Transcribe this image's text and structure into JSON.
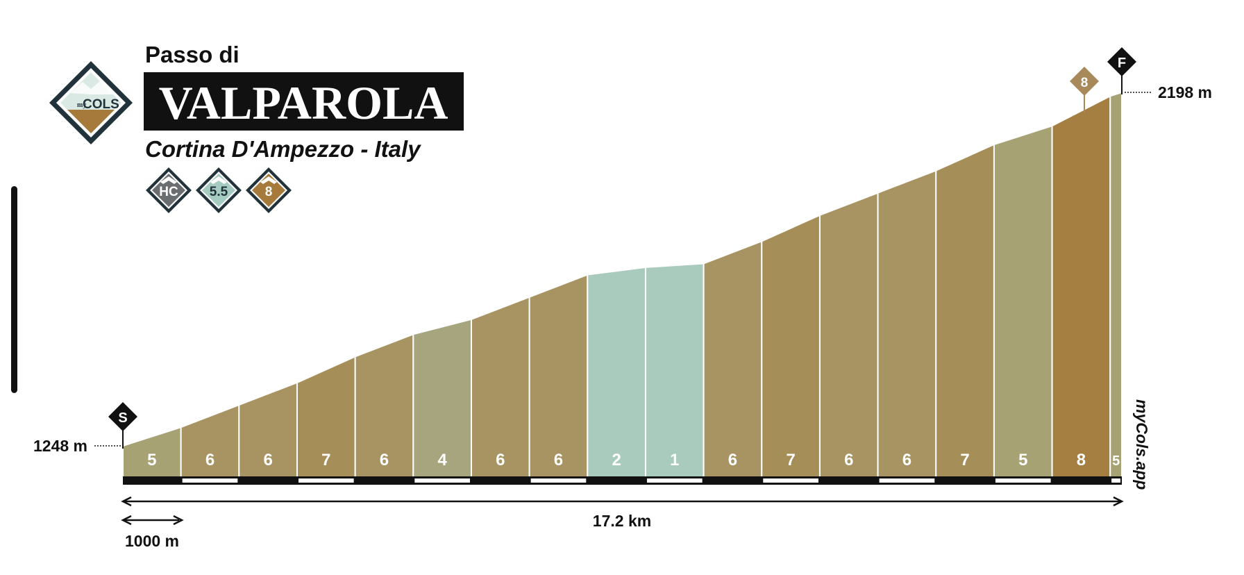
{
  "header": {
    "prefix": "Passo di",
    "name": "VALPAROLA",
    "location": "Cortina D'Ampezzo - Italy",
    "logo_text_small": "my",
    "logo_text_big": "COLS"
  },
  "badges": [
    {
      "label": "HC",
      "color": "#6b6e70"
    },
    {
      "label": "5.5",
      "color": "#a6cbc0"
    },
    {
      "label": "8",
      "color": "#a67a3a"
    }
  ],
  "markers": {
    "start": "S",
    "finish": "F"
  },
  "summit_badge": {
    "label": "8",
    "color": "#a88a5a"
  },
  "watermark": "myCols.app",
  "colors": {
    "2": "#a9cbbd",
    "1": "#a9cbbd",
    "4": "#a6a57e",
    "5": "#a6a274",
    "6": "#a89462",
    "7": "#a68e58",
    "8": "#a57f41"
  },
  "chart_data": {
    "type": "area",
    "title": "VALPAROLA",
    "start_elevation": 1248,
    "end_elevation": 2198,
    "start_label": "1248 m",
    "end_label": "2198 m",
    "distance_label": "17.2 km",
    "distance_km": 17.2,
    "scale_label": "1000 m",
    "scale_km": 1,
    "segments": [
      {
        "km_start": 0,
        "km_end": 1,
        "gradient": 5
      },
      {
        "km_start": 1,
        "km_end": 2,
        "gradient": 6
      },
      {
        "km_start": 2,
        "km_end": 3,
        "gradient": 6
      },
      {
        "km_start": 3,
        "km_end": 4,
        "gradient": 7
      },
      {
        "km_start": 4,
        "km_end": 5,
        "gradient": 6
      },
      {
        "km_start": 5,
        "km_end": 6,
        "gradient": 4
      },
      {
        "km_start": 6,
        "km_end": 7,
        "gradient": 6
      },
      {
        "km_start": 7,
        "km_end": 8,
        "gradient": 6
      },
      {
        "km_start": 8,
        "km_end": 9,
        "gradient": 2
      },
      {
        "km_start": 9,
        "km_end": 10,
        "gradient": 1
      },
      {
        "km_start": 10,
        "km_end": 11,
        "gradient": 6
      },
      {
        "km_start": 11,
        "km_end": 12,
        "gradient": 7
      },
      {
        "km_start": 12,
        "km_end": 13,
        "gradient": 6
      },
      {
        "km_start": 13,
        "km_end": 14,
        "gradient": 6
      },
      {
        "km_start": 14,
        "km_end": 15,
        "gradient": 7
      },
      {
        "km_start": 15,
        "km_end": 16,
        "gradient": 5
      },
      {
        "km_start": 16,
        "km_end": 17,
        "gradient": 8
      },
      {
        "km_start": 17,
        "km_end": 17.2,
        "gradient": 5
      }
    ]
  }
}
